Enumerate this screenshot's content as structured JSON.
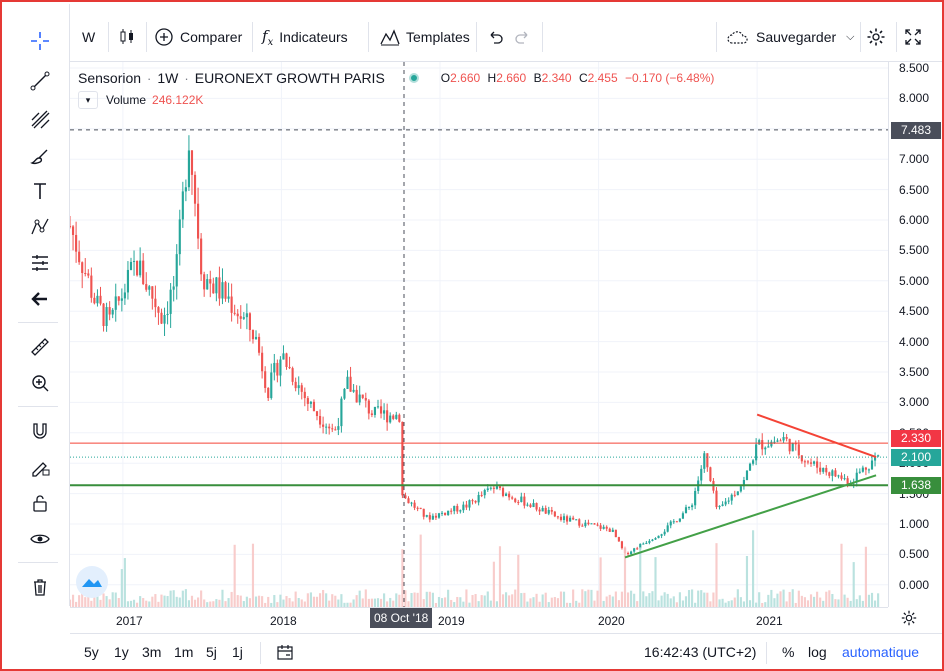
{
  "toolbar": {
    "interval": "W",
    "compare_label": "Comparer",
    "indicators_label": "Indicateurs",
    "templates_label": "Templates",
    "save_label": "Sauvegarder"
  },
  "legend": {
    "symbol": "Sensorion",
    "interval": "1W",
    "exchange": "EURONEXT GROWTH PARIS",
    "open_label": "O",
    "open": "2.660",
    "high_label": "H",
    "high": "2.660",
    "low_label": "B",
    "low": "2.340",
    "close_label": "C",
    "close": "2.455",
    "change": "−0.170 (−6.48%)",
    "volume_label": "Volume",
    "volume": "246.122K"
  },
  "price_axis": {
    "ticks": [
      "8.500",
      "8.000",
      "7.500",
      "7.000",
      "6.500",
      "6.000",
      "5.500",
      "5.000",
      "4.500",
      "4.000",
      "3.500",
      "3.000",
      "2.500",
      "2.000",
      "1.500",
      "1.000",
      "0.500",
      "0.000"
    ],
    "labels": {
      "crosshair": "7.483",
      "resistance": "2.330",
      "last": "2.100",
      "support": "1.638"
    }
  },
  "time_axis": {
    "ticks": [
      "2017",
      "2018",
      "2019",
      "2020",
      "2021"
    ],
    "crosshair_label": "08 Oct '18"
  },
  "bottom_bar": {
    "ranges": [
      "5y",
      "1y",
      "3m",
      "1m",
      "5j",
      "1j"
    ],
    "clock": "16:42:43 (UTC+2)",
    "percent": "%",
    "log": "log",
    "auto": "automatique"
  },
  "colors": {
    "up": "#26a69a",
    "down": "#ef5350",
    "support": "#388e3c",
    "resistance": "#f44336",
    "last_price": "#26a69a"
  },
  "chart_data": {
    "type": "candlestick",
    "title": "Sensorion · 1W · EURONEXT GROWTH PARIS",
    "x_range": [
      "2016-09",
      "2021-10"
    ],
    "y_range": [
      0,
      8.5
    ],
    "key_levels": {
      "resistance": 2.33,
      "support": 1.638,
      "last": 2.1,
      "crosshair": 7.483
    },
    "trendlines": [
      {
        "name": "descending resistance",
        "from": [
          "2021-01",
          2.8
        ],
        "to": [
          "2021-10",
          2.1
        ]
      },
      {
        "name": "ascending support",
        "from": [
          "2020-03",
          0.45
        ],
        "to": [
          "2021-10",
          1.8
        ]
      }
    ],
    "close_path": [
      [
        "2016-09",
        5.9
      ],
      [
        "2016-11",
        4.6
      ],
      [
        "2016-12",
        4.3
      ],
      [
        "2017-02",
        5.3
      ],
      [
        "2017-04",
        4.4
      ],
      [
        "2017-05",
        5.0
      ],
      [
        "2017-06",
        7.4
      ],
      [
        "2017-07",
        5.1
      ],
      [
        "2017-09",
        4.7
      ],
      [
        "2017-11",
        4.1
      ],
      [
        "2017-12",
        3.2
      ],
      [
        "2018-01",
        3.8
      ],
      [
        "2018-03",
        3.0
      ],
      [
        "2018-05",
        2.5
      ],
      [
        "2018-06",
        3.3
      ],
      [
        "2018-08",
        2.8
      ],
      [
        "2018-10",
        2.8
      ],
      [
        "2018-10",
        1.5
      ],
      [
        "2018-12",
        1.1
      ],
      [
        "2019-03",
        1.3
      ],
      [
        "2019-05",
        1.6
      ],
      [
        "2019-07",
        1.4
      ],
      [
        "2019-10",
        1.1
      ],
      [
        "2019-12",
        1.0
      ],
      [
        "2020-02",
        0.9
      ],
      [
        "2020-03",
        0.5
      ],
      [
        "2020-06",
        0.9
      ],
      [
        "2020-08",
        1.3
      ],
      [
        "2020-09",
        2.1
      ],
      [
        "2020-10",
        1.2
      ],
      [
        "2020-12",
        1.7
      ],
      [
        "2021-01",
        2.3
      ],
      [
        "2021-03",
        2.4
      ],
      [
        "2021-05",
        2.0
      ],
      [
        "2021-08",
        1.7
      ],
      [
        "2021-10",
        2.1
      ]
    ]
  }
}
